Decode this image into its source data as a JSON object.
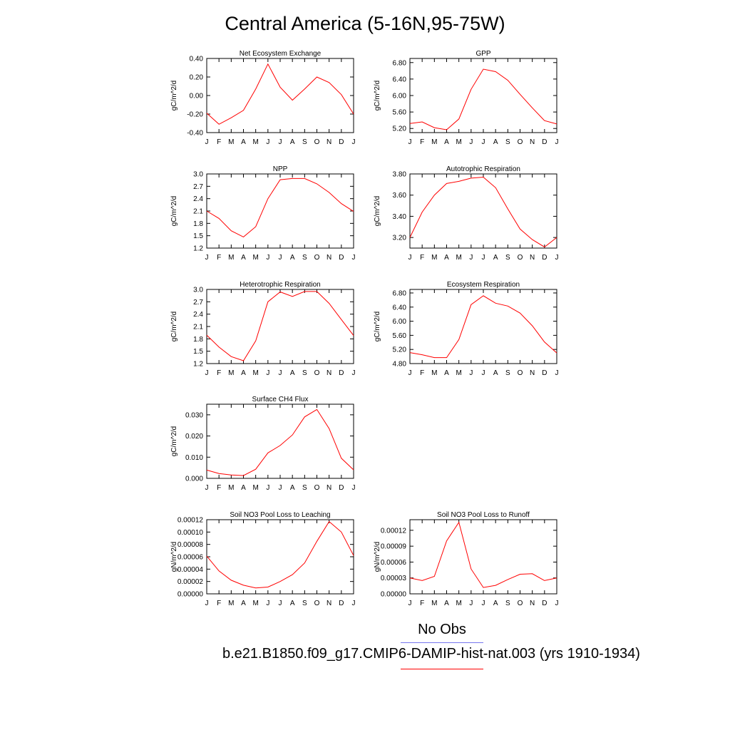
{
  "title": "Central America (5-16N,95-75W)",
  "legend": {
    "obs_label": "No Obs",
    "obs_color": "#7777ee",
    "model_label": "b.e21.B1850.f09_g17.CMIP6-DAMIP-hist-nat.003 (yrs 1910-1934)",
    "model_color": "#ff0000"
  },
  "chart_data": [
    {
      "type": "line",
      "title": "Net Ecosystem Exchange",
      "ylabel": "gC/m^2/d",
      "categories": [
        "J",
        "F",
        "M",
        "A",
        "M",
        "J",
        "J",
        "A",
        "S",
        "O",
        "N",
        "D",
        "J"
      ],
      "ylim": [
        -0.4,
        0.4
      ],
      "yticks": [
        "0.40",
        "0.20",
        "0.00",
        "-0.20",
        "-0.40"
      ],
      "series": [
        {
          "values": [
            -0.19,
            -0.31,
            -0.24,
            -0.16,
            0.07,
            0.34,
            0.09,
            -0.05,
            0.07,
            0.2,
            0.14,
            0.01,
            -0.2
          ]
        }
      ]
    },
    {
      "type": "line",
      "title": "GPP",
      "ylabel": "gC/m^2/d",
      "categories": [
        "J",
        "F",
        "M",
        "A",
        "M",
        "J",
        "J",
        "A",
        "S",
        "O",
        "N",
        "D",
        "J"
      ],
      "ylim": [
        5.1,
        6.9
      ],
      "yticks": [
        "6.80",
        "6.40",
        "6.00",
        "5.60",
        "5.20"
      ],
      "series": [
        {
          "values": [
            5.32,
            5.36,
            5.22,
            5.17,
            5.43,
            6.15,
            6.64,
            6.58,
            6.37,
            6.03,
            5.7,
            5.39,
            5.31
          ]
        }
      ]
    },
    {
      "type": "line",
      "title": "NPP",
      "ylabel": "gC/m^2/d",
      "categories": [
        "J",
        "F",
        "M",
        "A",
        "M",
        "J",
        "J",
        "A",
        "S",
        "O",
        "N",
        "D",
        "J"
      ],
      "ylim": [
        1.2,
        3.0
      ],
      "yticks": [
        "3.0",
        "2.7",
        "2.4",
        "2.1",
        "1.8",
        "1.5",
        "1.2"
      ],
      "series": [
        {
          "values": [
            2.1,
            1.92,
            1.62,
            1.47,
            1.72,
            2.4,
            2.86,
            2.89,
            2.89,
            2.76,
            2.55,
            2.28,
            2.09
          ]
        }
      ]
    },
    {
      "type": "line",
      "title": "Autotrophic Respiration",
      "ylabel": "gC/m^2/d",
      "categories": [
        "J",
        "F",
        "M",
        "A",
        "M",
        "J",
        "J",
        "A",
        "S",
        "O",
        "N",
        "D",
        "J"
      ],
      "ylim": [
        3.1,
        3.8
      ],
      "yticks": [
        "3.80",
        "3.60",
        "3.40",
        "3.20"
      ],
      "series": [
        {
          "values": [
            3.2,
            3.44,
            3.6,
            3.71,
            3.73,
            3.76,
            3.77,
            3.67,
            3.47,
            3.28,
            3.18,
            3.11,
            3.2
          ]
        }
      ]
    },
    {
      "type": "line",
      "title": "Heterotrophic Respiration",
      "ylabel": "gC/m^2/d",
      "categories": [
        "J",
        "F",
        "M",
        "A",
        "M",
        "J",
        "J",
        "A",
        "S",
        "O",
        "N",
        "D",
        "J"
      ],
      "ylim": [
        1.2,
        3.0
      ],
      "yticks": [
        "3.0",
        "2.7",
        "2.4",
        "2.1",
        "1.8",
        "1.5",
        "1.2"
      ],
      "series": [
        {
          "values": [
            1.89,
            1.6,
            1.37,
            1.27,
            1.75,
            2.7,
            2.94,
            2.83,
            2.95,
            2.95,
            2.66,
            2.27,
            1.88
          ]
        }
      ]
    },
    {
      "type": "line",
      "title": "Ecosystem Respiration",
      "ylabel": "gC/m^2/d",
      "categories": [
        "J",
        "F",
        "M",
        "A",
        "M",
        "J",
        "J",
        "A",
        "S",
        "O",
        "N",
        "D",
        "J"
      ],
      "ylim": [
        4.8,
        6.9
      ],
      "yticks": [
        "6.80",
        "6.40",
        "6.00",
        "5.60",
        "5.20",
        "4.80"
      ],
      "series": [
        {
          "values": [
            5.11,
            5.05,
            4.97,
            4.97,
            5.48,
            6.47,
            6.72,
            6.51,
            6.43,
            6.23,
            5.87,
            5.41,
            5.1
          ]
        }
      ]
    },
    {
      "type": "line",
      "title": "Surface CH4 Flux",
      "ylabel": "gC/m^2/d",
      "categories": [
        "J",
        "F",
        "M",
        "A",
        "M",
        "J",
        "J",
        "A",
        "S",
        "O",
        "N",
        "D",
        "J"
      ],
      "ylim": [
        0,
        0.035
      ],
      "yticks": [
        "0.030",
        "0.020",
        "0.010",
        "0.000"
      ],
      "series": [
        {
          "values": [
            0.0039,
            0.0023,
            0.0016,
            0.0013,
            0.0043,
            0.012,
            0.0155,
            0.0205,
            0.029,
            0.0325,
            0.0235,
            0.0095,
            0.004
          ]
        }
      ]
    },
    {
      "type": "line",
      "title": "Soil NO3 Pool Loss to Leaching",
      "ylabel": "gN/m^2/d",
      "categories": [
        "J",
        "F",
        "M",
        "A",
        "M",
        "J",
        "J",
        "A",
        "S",
        "O",
        "N",
        "D",
        "J"
      ],
      "ylim": [
        0,
        0.00012
      ],
      "yticks": [
        "0.00012",
        "0.00010",
        "0.00008",
        "0.00006",
        "0.00004",
        "0.00002",
        "0.00000"
      ],
      "series": [
        {
          "values": [
            6.1e-05,
            3.7e-05,
            2.2e-05,
            1.4e-05,
            9.5e-06,
            1.1e-05,
            2e-05,
            3.1e-05,
            5e-05,
            8.5e-05,
            0.000117,
            0.0001,
            6.2e-05
          ]
        }
      ]
    },
    {
      "type": "line",
      "title": "Soil NO3 Pool Loss to Runoff",
      "ylabel": "gN/m^2/d",
      "categories": [
        "J",
        "F",
        "M",
        "A",
        "M",
        "J",
        "J",
        "A",
        "S",
        "O",
        "N",
        "D",
        "J"
      ],
      "ylim": [
        0,
        0.00014
      ],
      "yticks": [
        "0.00012",
        "0.00009",
        "0.00006",
        "0.00003",
        "0.00000"
      ],
      "series": [
        {
          "values": [
            3e-05,
            2.5e-05,
            3.3e-05,
            0.0001,
            0.000135,
            4.7e-05,
            1.2e-05,
            1.6e-05,
            2.7e-05,
            3.7e-05,
            3.8e-05,
            2.5e-05,
            3e-05
          ]
        }
      ]
    }
  ]
}
